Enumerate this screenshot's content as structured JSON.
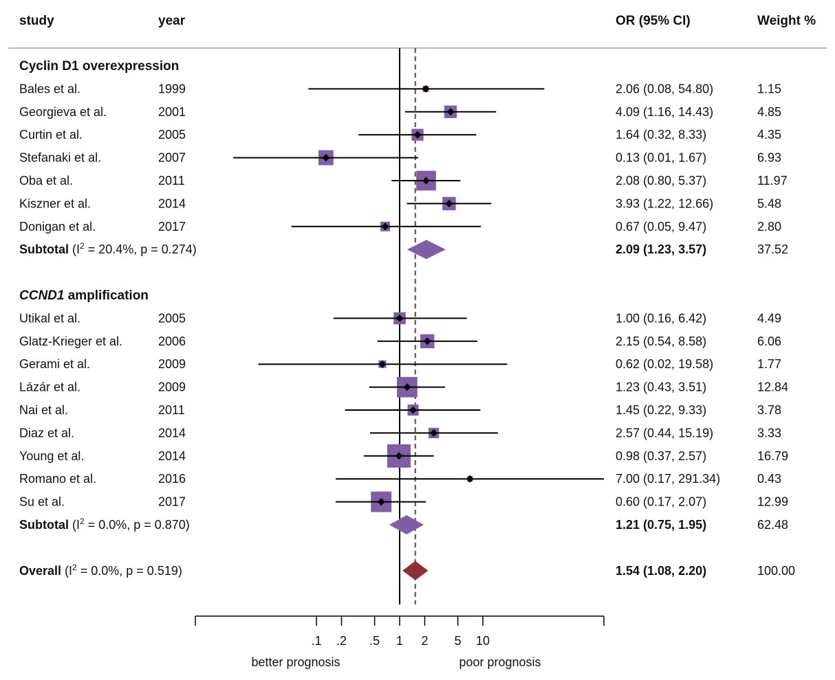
{
  "chart_data": {
    "type": "forest",
    "headers": {
      "study": "study",
      "year": "year",
      "or": "OR (95% CI)",
      "weight": "Weight %"
    },
    "scale": "log",
    "null_value": 1,
    "overall_value": 1.54,
    "x_ticks": [
      {
        "value": 0.1,
        "label": ".1"
      },
      {
        "value": 0.2,
        "label": ".2"
      },
      {
        "value": 0.5,
        "label": ".5"
      },
      {
        "value": 1,
        "label": "1"
      },
      {
        "value": 2,
        "label": "2"
      },
      {
        "value": 5,
        "label": "5"
      },
      {
        "value": 10,
        "label": "10"
      }
    ],
    "x_range": [
      0.0035,
      285
    ],
    "direction_labels": {
      "left": "better prognosis",
      "right": "poor prognosis"
    },
    "groups": [
      {
        "title_italic": "",
        "title": "Cyclin D1 overexpression",
        "studies": [
          {
            "study": "Bales et al.",
            "year": "1999",
            "or": 2.06,
            "lo": 0.08,
            "hi": 54.8,
            "ci_text": "2.06 (0.08, 54.80)",
            "weight": "1.15"
          },
          {
            "study": "Georgieva et al.",
            "year": "2001",
            "or": 4.09,
            "lo": 1.16,
            "hi": 14.43,
            "ci_text": "4.09 (1.16, 14.43)",
            "weight": "4.85"
          },
          {
            "study": "Curtin et al.",
            "year": "2005",
            "or": 1.64,
            "lo": 0.32,
            "hi": 8.33,
            "ci_text": "1.64 (0.32, 8.33)",
            "weight": "4.35"
          },
          {
            "study": "Stefanaki et al.",
            "year": "2007",
            "or": 0.13,
            "lo": 0.01,
            "hi": 1.67,
            "ci_text": "0.13 (0.01, 1.67)",
            "weight": "6.93"
          },
          {
            "study": "Oba et al.",
            "year": "2011",
            "or": 2.08,
            "lo": 0.8,
            "hi": 5.37,
            "ci_text": "2.08 (0.80, 5.37)",
            "weight": "11.97"
          },
          {
            "study": "Kiszner et al.",
            "year": "2014",
            "or": 3.93,
            "lo": 1.22,
            "hi": 12.66,
            "ci_text": "3.93 (1.22, 12.66)",
            "weight": "5.48"
          },
          {
            "study": "Donigan et al.",
            "year": "2017",
            "or": 0.67,
            "lo": 0.05,
            "hi": 9.47,
            "ci_text": "0.67 (0.05, 9.47)",
            "weight": "2.80"
          }
        ],
        "subtotal": {
          "label": "Subtotal",
          "i2": "20.4%",
          "p": "0.274",
          "or": 2.09,
          "lo": 1.23,
          "hi": 3.57,
          "ci_text": "2.09 (1.23, 3.57)",
          "weight": "37.52"
        }
      },
      {
        "title_italic": "CCND1",
        "title": "amplification",
        "studies": [
          {
            "study": "Utikal et al.",
            "year": "2005",
            "or": 1.0,
            "lo": 0.16,
            "hi": 6.42,
            "ci_text": "1.00 (0.16, 6.42)",
            "weight": "4.49"
          },
          {
            "study": "Glatz-Krieger et al.",
            "year": "2006",
            "or": 2.15,
            "lo": 0.54,
            "hi": 8.58,
            "ci_text": "2.15 (0.54, 8.58)",
            "weight": "6.06"
          },
          {
            "study": "Gerami et al.",
            "year": "2009",
            "or": 0.62,
            "lo": 0.02,
            "hi": 19.58,
            "ci_text": "0.62 (0.02, 19.58)",
            "weight": "1.77"
          },
          {
            "study": "Lázár et al.",
            "year": "2009",
            "or": 1.23,
            "lo": 0.43,
            "hi": 3.51,
            "ci_text": "1.23 (0.43, 3.51)",
            "weight": "12.84"
          },
          {
            "study": "Nai et al.",
            "year": "2011",
            "or": 1.45,
            "lo": 0.22,
            "hi": 9.33,
            "ci_text": "1.45 (0.22, 9.33)",
            "weight": "3.78"
          },
          {
            "study": "Diaz et al.",
            "year": "2014",
            "or": 2.57,
            "lo": 0.44,
            "hi": 15.19,
            "ci_text": "2.57 (0.44, 15.19)",
            "weight": "3.33"
          },
          {
            "study": "Young et al.",
            "year": "2014",
            "or": 0.98,
            "lo": 0.37,
            "hi": 2.57,
            "ci_text": "0.98 (0.37, 2.57)",
            "weight": "16.79"
          },
          {
            "study": "Romano et al.",
            "year": "2016",
            "or": 7.0,
            "lo": 0.17,
            "hi": 291.34,
            "ci_text": "7.00 (0.17, 291.34)",
            "weight": "0.43"
          },
          {
            "study": "Su et al.",
            "year": "2017",
            "or": 0.6,
            "lo": 0.17,
            "hi": 2.07,
            "ci_text": "0.60 (0.17, 2.07)",
            "weight": "12.99"
          }
        ],
        "subtotal": {
          "label": "Subtotal",
          "i2": "0.0%",
          "p": "0.870",
          "or": 1.21,
          "lo": 0.75,
          "hi": 1.95,
          "ci_text": "1.21 (0.75, 1.95)",
          "weight": "62.48"
        }
      }
    ],
    "overall": {
      "label": "Overall",
      "i2": "0.0%",
      "p": "0.519",
      "or": 1.54,
      "lo": 1.08,
      "hi": 2.2,
      "ci_text": "1.54 (1.08, 2.20)",
      "weight": "100.00"
    },
    "colors": {
      "box": "#7f5ea6",
      "subtotal": "#7f5ea6",
      "overall": "#8b3137",
      "ref_line": "#8b3137",
      "rule": "#bbbbbb"
    }
  }
}
